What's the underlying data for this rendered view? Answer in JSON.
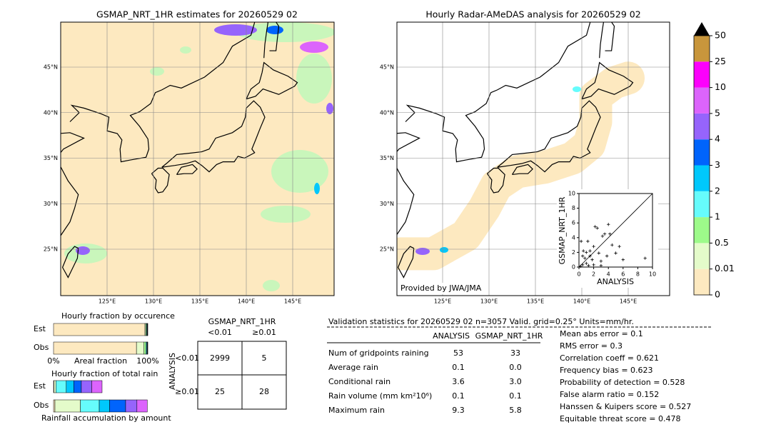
{
  "left_map": {
    "title": "GSMAP_NRT_1HR estimates for 20260529 02",
    "lat_labels": [
      "45°N",
      "40°N",
      "35°N",
      "30°N",
      "25°N"
    ],
    "lon_labels": [
      "125°E",
      "130°E",
      "135°E",
      "140°E",
      "145°E"
    ]
  },
  "right_map": {
    "title": "Hourly Radar-AMeDAS analysis for 20260529 02",
    "credit": "Provided by JWA/JMA",
    "lat_labels": [
      "45°N",
      "40°N",
      "35°N",
      "30°N",
      "25°N"
    ],
    "lon_labels": [
      "125°E",
      "130°E",
      "135°E",
      "140°E",
      "145°E"
    ]
  },
  "colorbar": {
    "levels": [
      0,
      0.01,
      0.5,
      1,
      2,
      3,
      4,
      5,
      10,
      25,
      50
    ],
    "colors": [
      "#fde9c0",
      "#e4fbca",
      "#9dfa8a",
      "#66fcfc",
      "#00c8fc",
      "#0064fc",
      "#9664fc",
      "#dc64fc",
      "#fc00fc",
      "#c8963c"
    ]
  },
  "chart_data": {
    "type": "scatter",
    "xlabel": "ANALYSIS",
    "ylabel": "GSMAP_NRT_1HR",
    "xlim": [
      0,
      10
    ],
    "ylim": [
      0,
      10
    ],
    "xticks": [
      0,
      2,
      4,
      6,
      8,
      10
    ],
    "yticks": [
      0,
      2,
      4,
      6,
      8,
      10
    ],
    "x": [
      0,
      0.2,
      0.5,
      0.8,
      1,
      1.2,
      1.5,
      1.8,
      2,
      2.2,
      2.5,
      2.7,
      3,
      3.2,
      3.5,
      3.8,
      4,
      4.2,
      4.5,
      5,
      5.5,
      6,
      9,
      0.3,
      0.5,
      1,
      1.3,
      2,
      3,
      0.6,
      1.5
    ],
    "y": [
      0,
      0.1,
      0.3,
      1.2,
      2,
      3.5,
      2.2,
      1,
      2.8,
      5.5,
      5.3,
      1.9,
      0.8,
      4.2,
      4.5,
      1.5,
      5.8,
      4.5,
      3,
      1.9,
      2.8,
      1,
      1.2,
      3.5,
      1.5,
      0.5,
      0.2,
      0.3,
      0.2,
      2.2,
      1.5
    ],
    "color": "#000000"
  },
  "occurrence": {
    "title": "Hourly fraction by occurence",
    "xlabel": "Areal fraction",
    "xticks": [
      {
        "value": 0,
        "label": "0%"
      },
      {
        "value": 100,
        "label": "100%"
      }
    ],
    "rows": [
      {
        "label": "Est",
        "segments": [
          97,
          1,
          0.8,
          0.6,
          0.3,
          0.2,
          0.1,
          0,
          0,
          0
        ]
      },
      {
        "label": "Obs",
        "segments": [
          88,
          8,
          2,
          1,
          0.5,
          0.3,
          0.1,
          0.1,
          0,
          0
        ]
      }
    ]
  },
  "total_rain": {
    "title": "Hourly fraction of total rain",
    "xlabel": "Rainfall accumulation by amount",
    "rows": [
      {
        "label": "Est",
        "segments": [
          0.5,
          2,
          0,
          11,
          8,
          8,
          11,
          11,
          0,
          0
        ]
      },
      {
        "label": "Obs",
        "segments": [
          1.5,
          27,
          0,
          20,
          11,
          17,
          12,
          11,
          0,
          0
        ]
      }
    ]
  },
  "contingency": {
    "col_title": "GSMAP_NRT_1HR",
    "row_title": "ANALYSIS",
    "col_labels": [
      "<0.01",
      "≥0.01"
    ],
    "row_labels": [
      "<0.01",
      "≥0.01"
    ],
    "cells": [
      [
        2999,
        5
      ],
      [
        25,
        28
      ]
    ]
  },
  "stats": {
    "header": "Validation statistics for 20260529 02  n=3057 Valid. grid=0.25° Units=mm/hr.",
    "columns": [
      "ANALYSIS",
      "GSMAP_NRT_1HR"
    ],
    "rows": [
      [
        "Num of gridpoints raining",
        "53",
        "33"
      ],
      [
        "Average rain",
        "0.1",
        "0.0"
      ],
      [
        "Conditional rain",
        "3.6",
        "3.0"
      ],
      [
        "Rain volume (mm km²10⁶)",
        "0.1",
        "0.1"
      ],
      [
        "Maximum rain",
        "9.3",
        "5.8"
      ]
    ],
    "scores": [
      "Mean abs error =    0.1",
      "RMS error =    0.3",
      "Correlation coeff =  0.621",
      "Frequency bias =  0.623",
      "Probability of detection =  0.528",
      "False alarm ratio =  0.152",
      "Hanssen & Kuipers score =  0.527",
      "Equitable threat score =  0.478"
    ]
  }
}
